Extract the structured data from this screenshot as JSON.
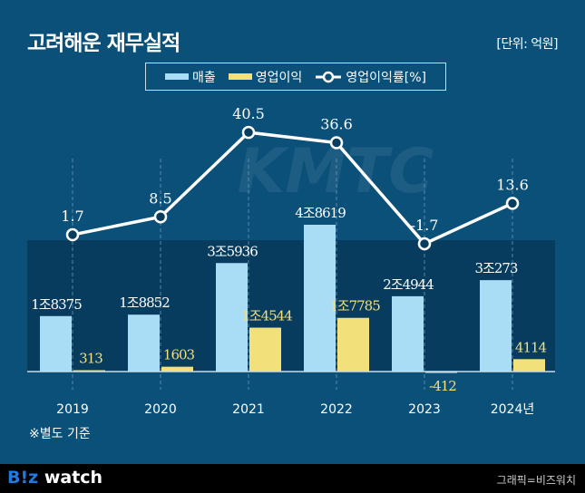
{
  "header": {
    "title": "고려해운 재무실적",
    "unit": "[단위: 억원]"
  },
  "legend": {
    "revenue": "매출",
    "op": "영업이익",
    "margin": "영업이익률[%]"
  },
  "note": "※별도 기준",
  "footer": {
    "logo_b": "B",
    "logo_i": "!z",
    "logo_rest": " watch",
    "credit": "그래픽=비즈워치"
  },
  "watermark": "KMTC",
  "colors": {
    "background": "#0a5079",
    "band": "#083c5e",
    "revenue": "#a9dcf5",
    "op": "#f2e07a",
    "line": "#ffffff"
  },
  "chart_data": {
    "type": "bar+line",
    "title": "고려해운 재무실적",
    "categories": [
      "2019",
      "2020",
      "2021",
      "2022",
      "2023",
      "2024년"
    ],
    "series": [
      {
        "name": "매출",
        "type": "bar",
        "values": [
          18375,
          18852,
          35936,
          48619,
          24944,
          30273
        ],
        "labels": [
          "1조8375",
          "1조8852",
          "3조5936",
          "4조8619",
          "2조4944",
          "3조273"
        ]
      },
      {
        "name": "영업이익",
        "type": "bar",
        "values": [
          313,
          1603,
          14544,
          17785,
          -412,
          4114
        ],
        "labels": [
          "313",
          "1603",
          "1조4544",
          "1조7785",
          "-412",
          "4114"
        ]
      },
      {
        "name": "영업이익률[%]",
        "type": "line",
        "values": [
          1.7,
          8.5,
          40.5,
          36.6,
          -1.7,
          13.6
        ],
        "labels": [
          "1.7",
          "8.5",
          "40.5",
          "36.6",
          "-1.7",
          "13.6"
        ]
      }
    ],
    "grid": "vertical dashed",
    "legend_position": "top-center"
  }
}
